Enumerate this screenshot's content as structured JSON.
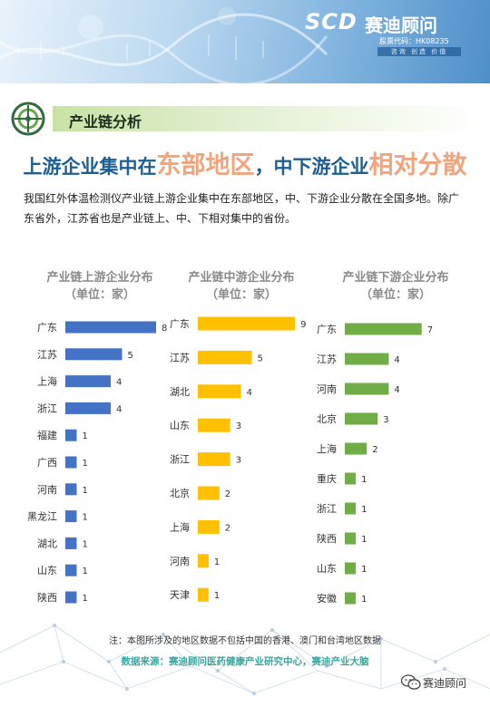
{
  "brand": {
    "logo_text": "SCD",
    "name": "赛迪顾问",
    "stock_code": "股票代码：HK08235",
    "slogan": "咨询 创造 价值"
  },
  "section": {
    "title": "产业链分析"
  },
  "headline": {
    "part1": "上游企业集中在",
    "part2": "东部地区",
    "part3": "，中下游企业",
    "part4": "相对分散"
  },
  "intro": "我国红外体温检测仪产业链上游企业集中在东部地区，中、下游企业分散在全国多地。除广东省外，江苏省也是产业链上、中、下相对集中的省份。",
  "colors": {
    "upstream": "#4472c4",
    "midstream": "#ffc000",
    "downstream": "#70ad47"
  },
  "chart_data": [
    {
      "type": "bar",
      "orientation": "horizontal",
      "title": "产业链上游企业分布",
      "subtitle": "（单位：家）",
      "categories": [
        "广东",
        "江苏",
        "上海",
        "浙江",
        "福建",
        "广西",
        "河南",
        "黑龙江",
        "湖北",
        "山东",
        "陕西"
      ],
      "values": [
        8,
        5,
        4,
        4,
        1,
        1,
        1,
        1,
        1,
        1,
        1
      ],
      "color": "#4472c4"
    },
    {
      "type": "bar",
      "orientation": "horizontal",
      "title": "产业链中游企业分布",
      "subtitle": "（单位：家）",
      "categories": [
        "广东",
        "江苏",
        "湖北",
        "山东",
        "浙江",
        "北京",
        "上海",
        "河南",
        "天津"
      ],
      "values": [
        9,
        5,
        4,
        3,
        3,
        2,
        2,
        1,
        1
      ],
      "color": "#ffc000"
    },
    {
      "type": "bar",
      "orientation": "horizontal",
      "title": "产业链下游企业分布",
      "subtitle": "（单位：家）",
      "categories": [
        "广东",
        "江苏",
        "河南",
        "北京",
        "上海",
        "重庆",
        "浙江",
        "陕西",
        "山东",
        "安徽"
      ],
      "values": [
        7,
        4,
        4,
        3,
        2,
        1,
        1,
        1,
        1,
        1
      ],
      "color": "#70ad47"
    }
  ],
  "footer": {
    "note": "注：本图所涉及的地区数据不包括中国的香港、澳门和台湾地区数据",
    "source": "数据来源：赛迪顾问医药健康产业研究中心，赛迪产业大脑",
    "wechat_name": "赛迪顾问"
  }
}
